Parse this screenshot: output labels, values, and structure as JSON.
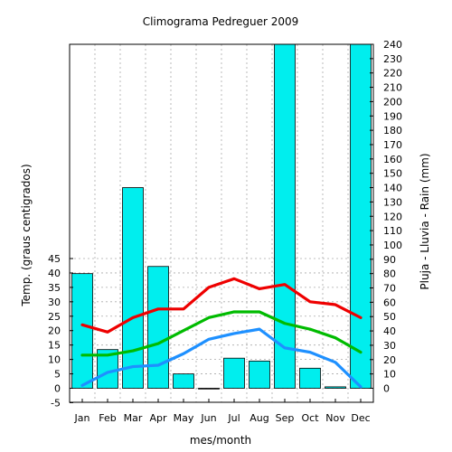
{
  "chart_data": {
    "type": "bar",
    "title": "Climograma Pedreguer 2009",
    "xlabel": "mes/month",
    "ylabel_left": "Temp. (graus centigrados)",
    "ylabel_right": "Pluja - Lluvia - Rain (mm)",
    "categories": [
      "Jan",
      "Feb",
      "Mar",
      "Apr",
      "May",
      "Jun",
      "Jul",
      "Aug",
      "Sep",
      "Oct",
      "Nov",
      "Dec"
    ],
    "left_axis": {
      "range": [
        -5,
        45
      ],
      "ticks": [
        -5,
        0,
        5,
        10,
        15,
        20,
        25,
        30,
        35,
        40,
        45
      ]
    },
    "right_axis": {
      "range": [
        0,
        240
      ],
      "tick_step": 10
    },
    "grid": true,
    "rain": {
      "axis": "right",
      "color": "#00eeee",
      "values": [
        80,
        27,
        140,
        85,
        10,
        0,
        21,
        19,
        240,
        14,
        1,
        240
      ]
    },
    "series": [
      {
        "axis": "left",
        "color": "#ee0000",
        "values": [
          22,
          19.5,
          24.5,
          27.5,
          27.5,
          35,
          38,
          34.5,
          36,
          30,
          29,
          24.5
        ]
      },
      {
        "axis": "left",
        "color": "#00bb00",
        "values": [
          11.5,
          11.5,
          13,
          15.5,
          20,
          24.5,
          26.5,
          26.5,
          22.5,
          20.5,
          17.5,
          12.5
        ]
      },
      {
        "axis": "left",
        "color": "#1e90ff",
        "values": [
          1,
          5.5,
          7.5,
          8,
          12,
          17,
          19,
          20.5,
          14,
          12.5,
          9,
          0.5
        ]
      }
    ]
  }
}
